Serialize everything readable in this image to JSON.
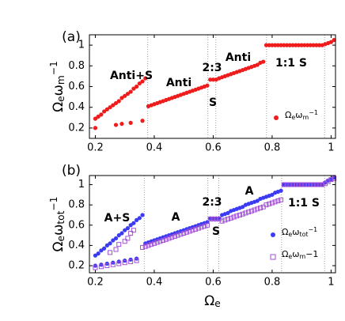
{
  "chart_data": [
    {
      "type": "scatter",
      "panel_label": "(a)",
      "ylabel": [
        {
          "t": "Ω"
        },
        {
          "t": "e",
          "s": "sub"
        },
        {
          "t": "ω"
        },
        {
          "t": "m",
          "s": "sub"
        },
        {
          "t": "−1",
          "s": "sup"
        }
      ],
      "xlim": [
        0.18,
        1.015
      ],
      "ylim": [
        0.1,
        1.1
      ],
      "xticks": [
        0.2,
        0.4,
        0.6,
        0.8,
        1
      ],
      "yticks": [
        0.2,
        0.4,
        0.6,
        0.8,
        1
      ],
      "vlines": [
        0.378,
        0.582,
        0.609,
        0.781,
        0.978
      ],
      "annotations": [
        "Anti+S",
        "Anti",
        "2:3",
        "Anti",
        "S",
        "1:1 S"
      ],
      "series": [
        {
          "name": [
            {
              "t": "Ω"
            },
            {
              "t": "e",
              "s": "sub"
            },
            {
              "t": "ω"
            },
            {
              "t": "m",
              "s": "sub"
            },
            {
              "t": "−1",
              "s": "sup"
            }
          ],
          "color": "#ee1c1c",
          "marker": "circle",
          "x": [
            0.2,
            0.21,
            0.22,
            0.23,
            0.24,
            0.25,
            0.26,
            0.27,
            0.28,
            0.29,
            0.3,
            0.31,
            0.32,
            0.33,
            0.34,
            0.35,
            0.36,
            0.37,
            0.2,
            0.27,
            0.29,
            0.32,
            0.36,
            0.38,
            0.39,
            0.4,
            0.41,
            0.42,
            0.43,
            0.44,
            0.45,
            0.46,
            0.47,
            0.48,
            0.49,
            0.5,
            0.51,
            0.52,
            0.53,
            0.54,
            0.55,
            0.56,
            0.57,
            0.58,
            0.59,
            0.6,
            0.61,
            0.62,
            0.63,
            0.64,
            0.65,
            0.66,
            0.67,
            0.68,
            0.69,
            0.7,
            0.71,
            0.72,
            0.73,
            0.74,
            0.75,
            0.76,
            0.77,
            0.78,
            0.79,
            0.8,
            0.81,
            0.82,
            0.83,
            0.84,
            0.85,
            0.86,
            0.87,
            0.88,
            0.89,
            0.9,
            0.91,
            0.92,
            0.93,
            0.94,
            0.95,
            0.96,
            0.97,
            0.98,
            0.99,
            1.0,
            1.01
          ],
          "values": [
            0.29,
            0.31,
            0.33,
            0.36,
            0.38,
            0.4,
            0.42,
            0.44,
            0.46,
            0.49,
            0.51,
            0.53,
            0.55,
            0.58,
            0.6,
            0.63,
            0.65,
            0.68,
            0.2,
            0.23,
            0.24,
            0.25,
            0.27,
            0.41,
            0.42,
            0.43,
            0.44,
            0.45,
            0.46,
            0.47,
            0.48,
            0.49,
            0.5,
            0.51,
            0.52,
            0.53,
            0.54,
            0.55,
            0.56,
            0.57,
            0.58,
            0.59,
            0.6,
            0.61,
            0.667,
            0.667,
            0.667,
            0.68,
            0.69,
            0.7,
            0.71,
            0.72,
            0.73,
            0.74,
            0.75,
            0.76,
            0.77,
            0.78,
            0.79,
            0.8,
            0.81,
            0.83,
            0.84,
            1,
            1,
            1,
            1,
            1,
            1,
            1,
            1,
            1,
            1,
            1,
            1,
            1,
            1,
            1,
            1,
            1,
            1,
            1,
            1,
            1.01,
            1.02,
            1.03,
            1.05
          ]
        }
      ]
    },
    {
      "type": "scatter",
      "panel_label": "(b)",
      "ylabel": [
        {
          "t": "Ω"
        },
        {
          "t": "e",
          "s": "sub"
        },
        {
          "t": "ω"
        },
        {
          "t": "tot",
          "s": "sub"
        },
        {
          "t": "−1",
          "s": "sup"
        }
      ],
      "xlabel": [
        {
          "t": "Ω"
        },
        {
          "t": "e",
          "s": "sub"
        }
      ],
      "xlim": [
        0.18,
        1.015
      ],
      "ylim": [
        0.13,
        1.09
      ],
      "xticks": [
        0.2,
        0.4,
        0.6,
        0.8,
        1
      ],
      "yticks": [
        0.2,
        0.4,
        0.6,
        0.8,
        1
      ],
      "vlines": [
        0.366,
        0.582,
        0.619,
        0.832,
        0.978
      ],
      "annotations": [
        "A+S",
        "A",
        "2:3",
        "A",
        "S",
        "1:1 S"
      ],
      "series": [
        {
          "name": [
            {
              "t": "Ω"
            },
            {
              "t": "e",
              "s": "sub"
            },
            {
              "t": "ω"
            },
            {
              "t": "tot",
              "s": "sub"
            },
            {
              "t": "−1",
              "s": "sup"
            }
          ],
          "color": "#3b3bf2",
          "marker": "circle",
          "x": [
            0.2,
            0.21,
            0.22,
            0.23,
            0.24,
            0.25,
            0.26,
            0.27,
            0.28,
            0.29,
            0.3,
            0.31,
            0.32,
            0.33,
            0.34,
            0.35,
            0.36,
            0.2,
            0.22,
            0.24,
            0.26,
            0.28,
            0.3,
            0.32,
            0.34,
            0.37,
            0.38,
            0.39,
            0.4,
            0.41,
            0.42,
            0.43,
            0.44,
            0.45,
            0.46,
            0.47,
            0.48,
            0.49,
            0.5,
            0.51,
            0.52,
            0.53,
            0.54,
            0.55,
            0.56,
            0.57,
            0.58,
            0.59,
            0.6,
            0.61,
            0.62,
            0.63,
            0.64,
            0.65,
            0.66,
            0.67,
            0.68,
            0.69,
            0.7,
            0.71,
            0.72,
            0.73,
            0.74,
            0.75,
            0.76,
            0.77,
            0.78,
            0.79,
            0.8,
            0.81,
            0.82,
            0.83,
            0.84,
            0.85,
            0.86,
            0.87,
            0.88,
            0.89,
            0.9,
            0.91,
            0.92,
            0.93,
            0.94,
            0.95,
            0.96,
            0.97,
            0.98,
            0.99,
            1.0,
            1.01
          ],
          "values": [
            0.3,
            0.32,
            0.35,
            0.37,
            0.4,
            0.42,
            0.45,
            0.47,
            0.5,
            0.52,
            0.55,
            0.57,
            0.6,
            0.62,
            0.65,
            0.67,
            0.7,
            0.2,
            0.21,
            0.22,
            0.23,
            0.24,
            0.25,
            0.26,
            0.27,
            0.42,
            0.43,
            0.44,
            0.45,
            0.46,
            0.47,
            0.48,
            0.49,
            0.5,
            0.51,
            0.52,
            0.53,
            0.54,
            0.55,
            0.56,
            0.57,
            0.58,
            0.59,
            0.6,
            0.61,
            0.62,
            0.63,
            0.667,
            0.667,
            0.667,
            0.667,
            0.7,
            0.71,
            0.72,
            0.74,
            0.75,
            0.76,
            0.77,
            0.78,
            0.8,
            0.81,
            0.82,
            0.83,
            0.84,
            0.86,
            0.87,
            0.88,
            0.89,
            0.9,
            0.92,
            0.93,
            0.94,
            1,
            1,
            1,
            1,
            1,
            1,
            1,
            1,
            1,
            1,
            1,
            1,
            1,
            1,
            1.02,
            1.04,
            1.05,
            1.07
          ]
        },
        {
          "name": [
            {
              "t": "Ω"
            },
            {
              "t": "e",
              "s": "sub"
            },
            {
              "t": "ω"
            },
            {
              "t": "m",
              "s": "sub"
            },
            {
              "t": "−1"
            }
          ],
          "color": "#a24fd8",
          "marker": "square",
          "x": [
            0.2,
            0.22,
            0.24,
            0.26,
            0.28,
            0.3,
            0.32,
            0.34,
            0.25,
            0.27,
            0.28,
            0.3,
            0.31,
            0.32,
            0.33,
            0.36,
            0.37,
            0.38,
            0.39,
            0.4,
            0.41,
            0.42,
            0.43,
            0.44,
            0.45,
            0.46,
            0.47,
            0.48,
            0.49,
            0.5,
            0.51,
            0.52,
            0.53,
            0.54,
            0.55,
            0.56,
            0.57,
            0.58,
            0.59,
            0.6,
            0.61,
            0.62,
            0.63,
            0.64,
            0.65,
            0.66,
            0.67,
            0.68,
            0.69,
            0.7,
            0.71,
            0.72,
            0.73,
            0.74,
            0.75,
            0.76,
            0.77,
            0.78,
            0.79,
            0.8,
            0.81,
            0.82,
            0.83,
            0.84,
            0.85,
            0.86,
            0.87,
            0.88,
            0.89,
            0.9,
            0.91,
            0.92,
            0.93,
            0.94,
            0.95,
            0.96,
            0.97,
            0.98,
            0.99,
            1.0,
            1.01
          ],
          "values": [
            0.18,
            0.19,
            0.2,
            0.21,
            0.22,
            0.23,
            0.24,
            0.25,
            0.33,
            0.36,
            0.41,
            0.44,
            0.47,
            0.52,
            0.55,
            0.38,
            0.39,
            0.4,
            0.41,
            0.42,
            0.43,
            0.44,
            0.45,
            0.46,
            0.47,
            0.48,
            0.49,
            0.5,
            0.51,
            0.52,
            0.53,
            0.54,
            0.55,
            0.56,
            0.57,
            0.58,
            0.59,
            0.6,
            0.66,
            0.66,
            0.66,
            0.66,
            0.64,
            0.65,
            0.66,
            0.67,
            0.68,
            0.69,
            0.7,
            0.71,
            0.72,
            0.73,
            0.74,
            0.75,
            0.76,
            0.77,
            0.78,
            0.8,
            0.81,
            0.82,
            0.83,
            0.84,
            0.85,
            1,
            1,
            1,
            1,
            1,
            1,
            1,
            1,
            1,
            1,
            1,
            1,
            1,
            1,
            1.01,
            1.03,
            1.05,
            1.06
          ]
        }
      ]
    }
  ]
}
